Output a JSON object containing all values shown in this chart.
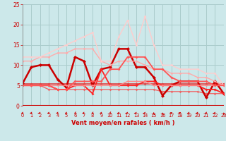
{
  "xlabel": "Vent moyen/en rafales ( km/h )",
  "bg_color": "#cce8ea",
  "grid_color": "#aacccc",
  "xlim": [
    0,
    23
  ],
  "ylim": [
    0,
    25
  ],
  "yticks": [
    0,
    5,
    10,
    15,
    20,
    25
  ],
  "xticks": [
    0,
    1,
    2,
    3,
    4,
    5,
    6,
    7,
    8,
    9,
    10,
    11,
    12,
    13,
    14,
    15,
    16,
    17,
    18,
    19,
    20,
    21,
    22,
    23
  ],
  "lines": [
    {
      "x": [
        0,
        1,
        2,
        3,
        4,
        5,
        6,
        7,
        8,
        9,
        10,
        11,
        12,
        13,
        14,
        15,
        16,
        17,
        18,
        19,
        20,
        21,
        22,
        23
      ],
      "y": [
        5.3,
        5.3,
        5.3,
        5.3,
        5.3,
        5.3,
        5.3,
        5.3,
        5.3,
        5.3,
        5.3,
        5.3,
        5.3,
        5.3,
        5.3,
        5.3,
        5.3,
        5.3,
        5.3,
        5.3,
        5.3,
        5.3,
        5.3,
        5.3
      ],
      "color": "#dd4444",
      "lw": 1.2,
      "ms": 2.0
    },
    {
      "x": [
        0,
        1,
        2,
        3,
        4,
        5,
        6,
        7,
        8,
        9,
        10,
        11,
        12,
        13,
        14,
        15,
        16,
        17,
        18,
        19,
        20,
        21,
        22,
        23
      ],
      "y": [
        5,
        5,
        5,
        4,
        4,
        4,
        4,
        4,
        4,
        4,
        4,
        4,
        4,
        4,
        4,
        4,
        3.5,
        3.5,
        3.5,
        3.5,
        3.5,
        3,
        3,
        3
      ],
      "color": "#ee6666",
      "lw": 1.0,
      "ms": 1.8
    },
    {
      "x": [
        0,
        1,
        2,
        3,
        4,
        5,
        6,
        7,
        8,
        9,
        10,
        11,
        12,
        13,
        14,
        15,
        16,
        17,
        18,
        19,
        20,
        21,
        22,
        23
      ],
      "y": [
        5.5,
        9.5,
        10,
        10,
        6.5,
        4.5,
        12,
        11,
        5,
        9,
        9.5,
        14,
        14,
        9.5,
        9.5,
        7,
        2.5,
        5,
        6,
        6,
        6,
        2,
        6,
        3
      ],
      "color": "#cc0000",
      "lw": 1.8,
      "ms": 2.5
    },
    {
      "x": [
        0,
        1,
        2,
        3,
        4,
        5,
        6,
        7,
        8,
        9,
        10,
        11,
        12,
        13,
        14,
        15,
        16,
        17,
        18,
        19,
        20,
        21,
        22,
        23
      ],
      "y": [
        5,
        5,
        5,
        5,
        4,
        4,
        5,
        5,
        3,
        9,
        5,
        5,
        5,
        5,
        6,
        6,
        5,
        5,
        5,
        5,
        5,
        4,
        4,
        3
      ],
      "color": "#ff2222",
      "lw": 1.3,
      "ms": 2.0
    },
    {
      "x": [
        0,
        1,
        2,
        3,
        4,
        5,
        6,
        7,
        8,
        9,
        10,
        11,
        12,
        13,
        14,
        15,
        16,
        17,
        18,
        19,
        20,
        21,
        22,
        23
      ],
      "y": [
        11,
        11,
        12,
        12,
        13,
        13,
        14,
        14,
        14,
        11,
        10,
        11,
        11,
        11,
        10,
        9,
        9,
        8,
        8,
        8,
        7,
        7,
        6,
        5
      ],
      "color": "#ffaaaa",
      "lw": 1.0,
      "ms": 1.8
    },
    {
      "x": [
        0,
        1,
        2,
        3,
        4,
        5,
        6,
        7,
        8,
        9,
        10,
        11,
        12,
        13,
        14,
        15,
        16,
        17,
        18,
        19,
        20,
        21,
        22,
        23
      ],
      "y": [
        5,
        5,
        5,
        5,
        5,
        5,
        5,
        5,
        5,
        5,
        5,
        5,
        6,
        6,
        6,
        5,
        5,
        5,
        5,
        5,
        5,
        5,
        5,
        5
      ],
      "color": "#ff8888",
      "lw": 1.0,
      "ms": 1.8
    },
    {
      "x": [
        0,
        1,
        2,
        3,
        4,
        5,
        6,
        7,
        8,
        9,
        10,
        11,
        12,
        13,
        14,
        15,
        16,
        17,
        18,
        19,
        20,
        21,
        22,
        23
      ],
      "y": [
        12,
        12,
        12,
        13,
        14,
        15,
        16,
        17,
        18,
        11,
        11,
        17,
        21,
        15,
        22,
        15,
        10,
        10,
        9,
        9,
        9,
        8,
        8,
        5
      ],
      "color": "#ffcccc",
      "lw": 1.0,
      "ms": 1.8
    },
    {
      "x": [
        0,
        1,
        2,
        3,
        4,
        5,
        6,
        7,
        8,
        9,
        10,
        11,
        12,
        13,
        14,
        15,
        16,
        17,
        18,
        19,
        20,
        21,
        22,
        23
      ],
      "y": [
        5,
        5,
        5,
        5,
        4,
        4,
        6,
        6,
        6,
        6,
        9,
        9,
        12,
        12,
        12,
        9,
        9,
        7,
        6,
        6,
        6,
        6,
        5,
        5
      ],
      "color": "#ff5555",
      "lw": 1.3,
      "ms": 2.0
    }
  ],
  "arrow_angles_deg": [
    225,
    225,
    210,
    220,
    225,
    225,
    240,
    220,
    235,
    220,
    240,
    220,
    210,
    210,
    215,
    90,
    95,
    135,
    140,
    225,
    220,
    225,
    215,
    95
  ]
}
